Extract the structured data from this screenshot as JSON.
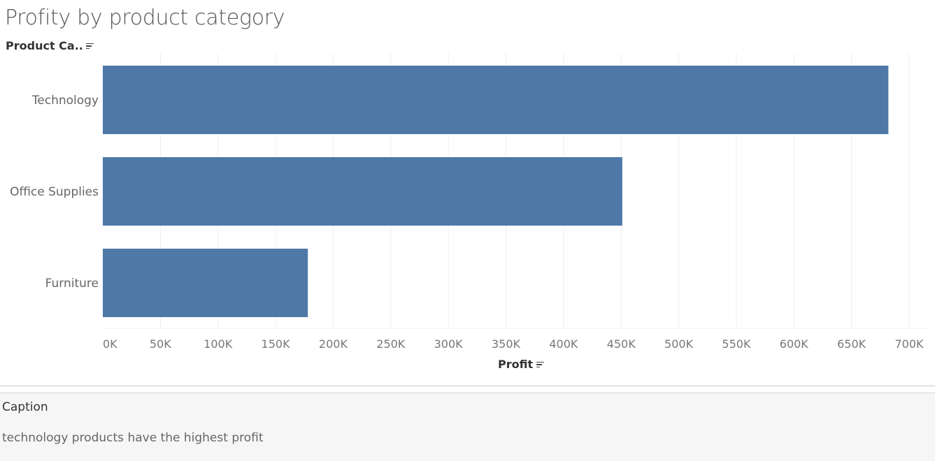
{
  "title": "Profity by product category",
  "row_header": "Product Ca..",
  "caption": {
    "title": "Caption",
    "text": "technology products have the highest profit"
  },
  "colors": {
    "bar": "#4e79a7",
    "gridline": "#eeeeee",
    "tick_label": "#777777",
    "category_label": "#666666"
  },
  "chart_data": {
    "type": "bar",
    "orientation": "horizontal",
    "title": "Profity by product category",
    "ylabel": "Product Ca..",
    "xlabel": "Profit",
    "categories": [
      "Technology",
      "Office Supplies",
      "Furniture"
    ],
    "values": [
      682000,
      451000,
      178000
    ],
    "xlim": [
      0,
      700000
    ],
    "xticks": [
      0,
      50000,
      100000,
      150000,
      200000,
      250000,
      300000,
      350000,
      400000,
      450000,
      500000,
      550000,
      600000,
      650000,
      700000
    ],
    "xtick_labels": [
      "0K",
      "50K",
      "100K",
      "150K",
      "200K",
      "250K",
      "300K",
      "350K",
      "400K",
      "450K",
      "500K",
      "550K",
      "600K",
      "650K",
      "700K"
    ],
    "grid": true,
    "legend": "none"
  }
}
